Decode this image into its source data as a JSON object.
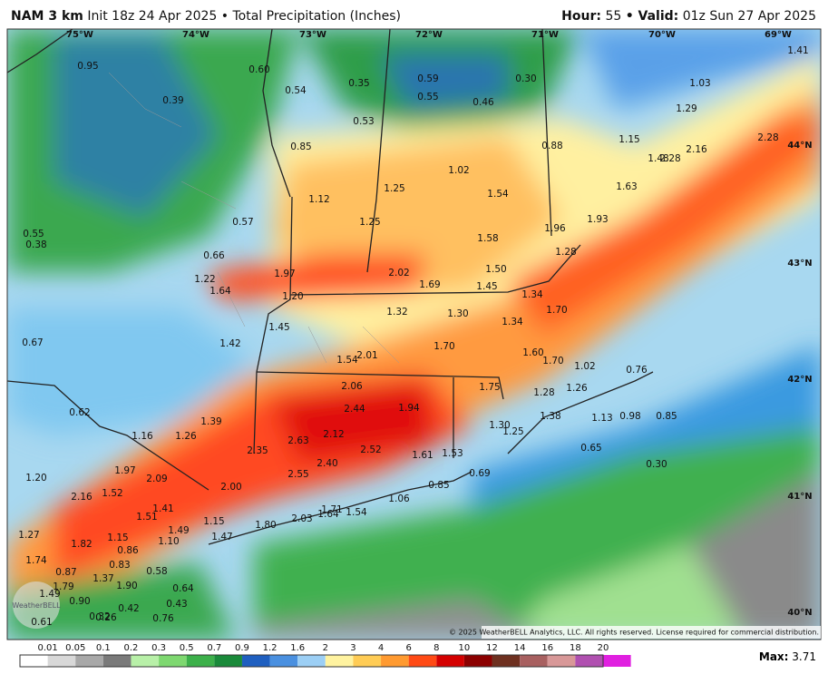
{
  "header": {
    "model": "NAM 3 km",
    "title": "Init 18z 24 Apr 2025 • Total Precipitation (Inches)",
    "hour_label": "Hour:",
    "hour": "55",
    "valid_label": "• Valid:",
    "valid": "01z Sun 27 Apr 2025"
  },
  "map": {
    "lon_labels": [
      "75°W",
      "74°W",
      "73°W",
      "72°W",
      "71°W",
      "70°W",
      "69°W"
    ],
    "lat_labels": [
      "44°N",
      "43°N",
      "42°N",
      "41°N",
      "40°N"
    ],
    "values": [
      "0.95",
      "0.60",
      "0.54",
      "0.35",
      "0.59",
      "0.30",
      "1.41",
      "1.03",
      "0.39",
      "0.55",
      "0.46",
      "1.29",
      "0.53",
      "0.88",
      "1.15",
      "0.85",
      "1.48",
      "2.16",
      "2.28",
      "2.28",
      "1.02",
      "1.12",
      "1.25",
      "1.54",
      "1.63",
      "0.57",
      "1.25",
      "1.96",
      "1.93",
      "0.55",
      "0.38",
      "1.58",
      "1.28",
      "0.66",
      "2.02",
      "1.50",
      "1.97",
      "1.22",
      "1.69",
      "1.45",
      "1.64",
      "1.20",
      "1.34",
      "1.32",
      "1.30",
      "1.70",
      "1.45",
      "1.34",
      "0.67",
      "1.42",
      "1.70",
      "1.60",
      "1.54",
      "2.01",
      "1.70",
      "1.02",
      "0.76",
      "2.06",
      "1.75",
      "1.28",
      "1.26",
      "0.62",
      "2.44",
      "1.94",
      "1.39",
      "1.38",
      "1.13",
      "0.98",
      "0.85",
      "1.16",
      "1.26",
      "2.63",
      "2.12",
      "1.30",
      "1.25",
      "2.35",
      "2.52",
      "1.61",
      "1.53",
      "0.65",
      "0.30",
      "1.97",
      "2.09",
      "1.20",
      "2.55",
      "2.40",
      "0.69",
      "2.00",
      "0.85",
      "1.06",
      "2.16",
      "1.52",
      "1.41",
      "1.71",
      "1.51",
      "2.03",
      "1.64",
      "1.54",
      "1.80",
      "1.15",
      "1.27",
      "1.49",
      "1.15",
      "1.47",
      "1.82",
      "1.10",
      "1.74",
      "0.86",
      "0.83",
      "0.87",
      "0.58",
      "1.37",
      "1.79",
      "1.90",
      "0.64",
      "1.49",
      "0.90",
      "0.43",
      "0.42",
      "0.32",
      "0.26",
      "0.76",
      "0.61"
    ]
  },
  "colorbar": {
    "labels": [
      "0.01",
      "0.05",
      "0.1",
      "0.2",
      "0.3",
      "0.5",
      "0.7",
      "0.9",
      "1.2",
      "1.6",
      "2",
      "3",
      "4",
      "6",
      "8",
      "10",
      "12",
      "14",
      "16",
      "18",
      "20"
    ],
    "max_label": "Max:",
    "max_value": "3.71"
  },
  "footer": {
    "copyright": "© 2025 WeatherBELL Analytics, LLC. All rights reserved. License required for commercial distribution.",
    "logo": "WeatherBELL"
  }
}
